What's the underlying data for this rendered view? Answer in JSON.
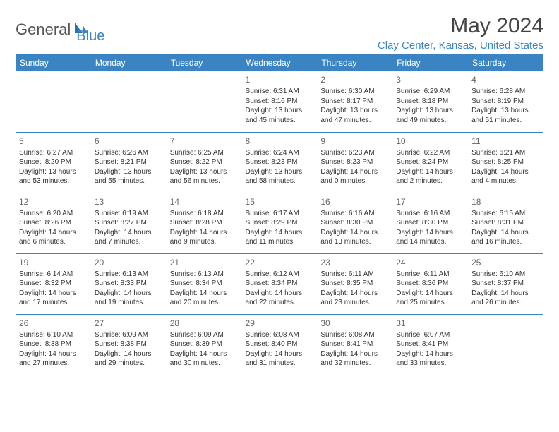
{
  "logo": {
    "part1": "General",
    "part2": "Blue"
  },
  "title": "May 2024",
  "location": "Clay Center, Kansas, United States",
  "colors": {
    "accent": "#3a84c4",
    "text": "#333333",
    "muted": "#666666",
    "bg": "#ffffff"
  },
  "headers": [
    "Sunday",
    "Monday",
    "Tuesday",
    "Wednesday",
    "Thursday",
    "Friday",
    "Saturday"
  ],
  "weeks": [
    [
      null,
      null,
      null,
      {
        "d": "1",
        "sr": "6:31 AM",
        "ss": "8:16 PM",
        "dl": "13 hours and 45 minutes."
      },
      {
        "d": "2",
        "sr": "6:30 AM",
        "ss": "8:17 PM",
        "dl": "13 hours and 47 minutes."
      },
      {
        "d": "3",
        "sr": "6:29 AM",
        "ss": "8:18 PM",
        "dl": "13 hours and 49 minutes."
      },
      {
        "d": "4",
        "sr": "6:28 AM",
        "ss": "8:19 PM",
        "dl": "13 hours and 51 minutes."
      }
    ],
    [
      {
        "d": "5",
        "sr": "6:27 AM",
        "ss": "8:20 PM",
        "dl": "13 hours and 53 minutes."
      },
      {
        "d": "6",
        "sr": "6:26 AM",
        "ss": "8:21 PM",
        "dl": "13 hours and 55 minutes."
      },
      {
        "d": "7",
        "sr": "6:25 AM",
        "ss": "8:22 PM",
        "dl": "13 hours and 56 minutes."
      },
      {
        "d": "8",
        "sr": "6:24 AM",
        "ss": "8:23 PM",
        "dl": "13 hours and 58 minutes."
      },
      {
        "d": "9",
        "sr": "6:23 AM",
        "ss": "8:23 PM",
        "dl": "14 hours and 0 minutes."
      },
      {
        "d": "10",
        "sr": "6:22 AM",
        "ss": "8:24 PM",
        "dl": "14 hours and 2 minutes."
      },
      {
        "d": "11",
        "sr": "6:21 AM",
        "ss": "8:25 PM",
        "dl": "14 hours and 4 minutes."
      }
    ],
    [
      {
        "d": "12",
        "sr": "6:20 AM",
        "ss": "8:26 PM",
        "dl": "14 hours and 6 minutes."
      },
      {
        "d": "13",
        "sr": "6:19 AM",
        "ss": "8:27 PM",
        "dl": "14 hours and 7 minutes."
      },
      {
        "d": "14",
        "sr": "6:18 AM",
        "ss": "8:28 PM",
        "dl": "14 hours and 9 minutes."
      },
      {
        "d": "15",
        "sr": "6:17 AM",
        "ss": "8:29 PM",
        "dl": "14 hours and 11 minutes."
      },
      {
        "d": "16",
        "sr": "6:16 AM",
        "ss": "8:30 PM",
        "dl": "14 hours and 13 minutes."
      },
      {
        "d": "17",
        "sr": "6:16 AM",
        "ss": "8:30 PM",
        "dl": "14 hours and 14 minutes."
      },
      {
        "d": "18",
        "sr": "6:15 AM",
        "ss": "8:31 PM",
        "dl": "14 hours and 16 minutes."
      }
    ],
    [
      {
        "d": "19",
        "sr": "6:14 AM",
        "ss": "8:32 PM",
        "dl": "14 hours and 17 minutes."
      },
      {
        "d": "20",
        "sr": "6:13 AM",
        "ss": "8:33 PM",
        "dl": "14 hours and 19 minutes."
      },
      {
        "d": "21",
        "sr": "6:13 AM",
        "ss": "8:34 PM",
        "dl": "14 hours and 20 minutes."
      },
      {
        "d": "22",
        "sr": "6:12 AM",
        "ss": "8:34 PM",
        "dl": "14 hours and 22 minutes."
      },
      {
        "d": "23",
        "sr": "6:11 AM",
        "ss": "8:35 PM",
        "dl": "14 hours and 23 minutes."
      },
      {
        "d": "24",
        "sr": "6:11 AM",
        "ss": "8:36 PM",
        "dl": "14 hours and 25 minutes."
      },
      {
        "d": "25",
        "sr": "6:10 AM",
        "ss": "8:37 PM",
        "dl": "14 hours and 26 minutes."
      }
    ],
    [
      {
        "d": "26",
        "sr": "6:10 AM",
        "ss": "8:38 PM",
        "dl": "14 hours and 27 minutes."
      },
      {
        "d": "27",
        "sr": "6:09 AM",
        "ss": "8:38 PM",
        "dl": "14 hours and 29 minutes."
      },
      {
        "d": "28",
        "sr": "6:09 AM",
        "ss": "8:39 PM",
        "dl": "14 hours and 30 minutes."
      },
      {
        "d": "29",
        "sr": "6:08 AM",
        "ss": "8:40 PM",
        "dl": "14 hours and 31 minutes."
      },
      {
        "d": "30",
        "sr": "6:08 AM",
        "ss": "8:41 PM",
        "dl": "14 hours and 32 minutes."
      },
      {
        "d": "31",
        "sr": "6:07 AM",
        "ss": "8:41 PM",
        "dl": "14 hours and 33 minutes."
      },
      null
    ]
  ],
  "labels": {
    "sunrise": "Sunrise: ",
    "sunset": "Sunset: ",
    "daylight": "Daylight: "
  }
}
